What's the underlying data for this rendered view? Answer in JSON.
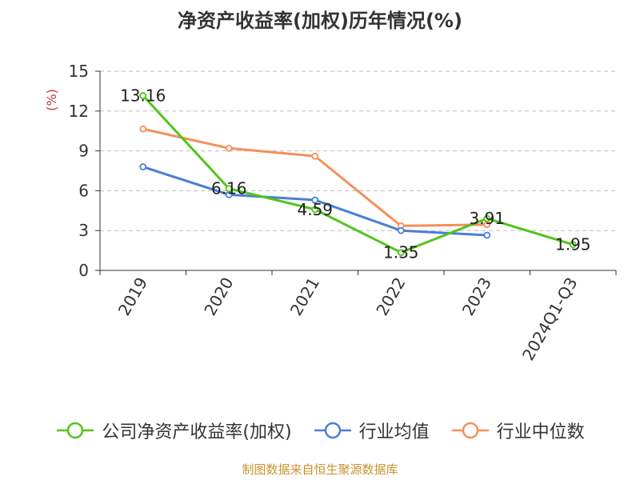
{
  "colors": {
    "company": "#52c41a",
    "industry_avg": "#4a7fd6",
    "industry_median": "#f4905a",
    "grid": "#bbbbbb",
    "axis": "#333333",
    "ylabel": "#c23531",
    "source": "#c8942e"
  },
  "chart_data": {
    "type": "line",
    "title": "净资产收益率(加权)历年情况(%)",
    "ylabel": "(%)",
    "xlabel": "",
    "categories": [
      "2019",
      "2020",
      "2021",
      "2022",
      "2023",
      "2024Q1-Q3"
    ],
    "yticks": [
      0,
      3,
      6,
      9,
      12,
      15
    ],
    "ylim": [
      0,
      15
    ],
    "grid": true,
    "legend_position": "bottom",
    "series": [
      {
        "name": "公司净资产收益率(加权)",
        "color": "#52c41a",
        "values": [
          13.16,
          6.16,
          4.59,
          1.35,
          3.91,
          1.95
        ],
        "labels": [
          "13.16",
          "6.16",
          "4.59",
          "1.35",
          "3.91",
          "1.95"
        ]
      },
      {
        "name": "行业均值",
        "color": "#4a7fd6",
        "values": [
          7.8,
          5.7,
          5.3,
          3.0,
          2.65,
          null
        ]
      },
      {
        "name": "行业中位数",
        "color": "#f4905a",
        "values": [
          10.65,
          9.2,
          8.6,
          3.35,
          3.45,
          null
        ]
      }
    ]
  },
  "source": "制图数据来自恒生聚源数据库"
}
